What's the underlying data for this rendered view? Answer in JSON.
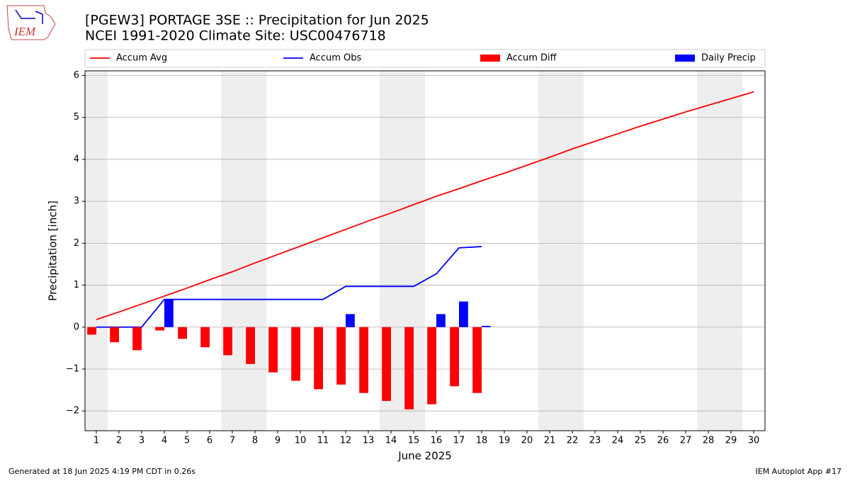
{
  "chart_data": {
    "type": "combo",
    "logo_text": "IEM",
    "title": "[PGEW3] PORTAGE 3SE :: Precipitation for Jun 2025",
    "subtitle": "NCEI 1991-2020 Climate Site: USC00476718",
    "y_label": "Precipitation [inch]",
    "x_label": "June 2025",
    "footer_left": "Generated at 18 Jun 2025 4:19 PM CDT in 0.26s",
    "footer_right": "IEM Autoplot App #17",
    "x": [
      1,
      2,
      3,
      4,
      5,
      6,
      7,
      8,
      9,
      10,
      11,
      12,
      13,
      14,
      15,
      16,
      17,
      18,
      19,
      20,
      21,
      22,
      23,
      24,
      25,
      26,
      27,
      28,
      29,
      30
    ],
    "xlim": [
      0.5,
      30.5
    ],
    "xticks": [
      1,
      2,
      3,
      4,
      5,
      6,
      7,
      8,
      9,
      10,
      11,
      12,
      13,
      14,
      15,
      16,
      17,
      18,
      19,
      20,
      21,
      22,
      23,
      24,
      25,
      26,
      27,
      28,
      29,
      30
    ],
    "ylim": [
      -2.47,
      6.11
    ],
    "yticks": [
      {
        "value": -2,
        "label": "−2"
      },
      {
        "value": -1,
        "label": "−1"
      },
      0,
      1,
      2,
      3,
      4,
      5,
      6
    ],
    "grid": true,
    "shaded_days": [
      1,
      7,
      8,
      14,
      15,
      21,
      22,
      28,
      29
    ],
    "series": [
      {
        "name": "Accum Avg",
        "kind": "line",
        "color": "#ff0000",
        "values": [
          0.18,
          0.36,
          0.55,
          0.74,
          0.93,
          1.13,
          1.32,
          1.53,
          1.73,
          1.93,
          2.13,
          2.33,
          2.53,
          2.72,
          2.92,
          3.12,
          3.3,
          3.49,
          3.67,
          3.86,
          4.05,
          4.25,
          4.43,
          4.61,
          4.79,
          4.96,
          5.13,
          5.29,
          5.45,
          5.61
        ]
      },
      {
        "name": "Accum Obs",
        "kind": "line",
        "color": "#0000ff",
        "values": [
          0,
          0,
          0,
          0.66,
          0.66,
          0.66,
          0.66,
          0.66,
          0.66,
          0.66,
          0.66,
          0.97,
          0.97,
          0.97,
          0.97,
          1.27,
          1.89,
          1.92,
          null,
          null,
          null,
          null,
          null,
          null,
          null,
          null,
          null,
          null,
          null,
          null
        ]
      },
      {
        "name": "Accum Diff",
        "kind": "bar",
        "color": "#ff0000",
        "values": [
          -0.18,
          -0.36,
          -0.55,
          -0.08,
          -0.28,
          -0.48,
          -0.67,
          -0.88,
          -1.08,
          -1.28,
          -1.48,
          -1.37,
          -1.57,
          -1.76,
          -1.96,
          -1.84,
          -1.41,
          -1.57,
          null,
          null,
          null,
          null,
          null,
          null,
          null,
          null,
          null,
          null,
          null,
          null
        ]
      },
      {
        "name": "Daily Precip",
        "kind": "bar",
        "color": "#0000ff",
        "values": [
          0,
          0,
          0,
          0.66,
          0,
          0,
          0,
          0,
          0,
          0,
          0,
          0.31,
          0,
          0,
          0,
          0.31,
          0.61,
          0.03,
          null,
          null,
          null,
          null,
          null,
          null,
          null,
          null,
          null,
          null,
          null,
          null
        ]
      }
    ]
  }
}
